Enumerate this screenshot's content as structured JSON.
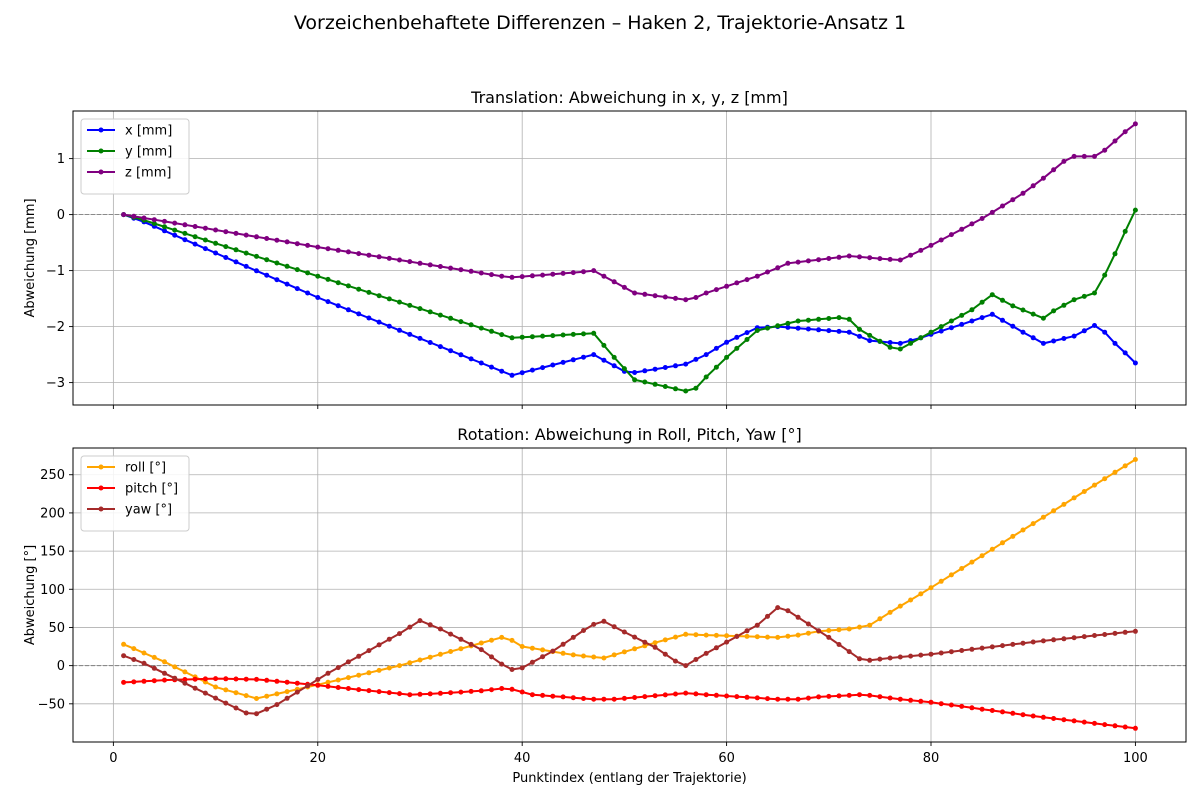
{
  "figure": {
    "suptitle": "Vorzeichenbehaftete Differenzen – Haken 2, Trajektorie-Ansatz 1"
  },
  "chart_data": [
    {
      "type": "line",
      "title": "Translation: Abweichung in x, y, z [mm]",
      "xlabel": "",
      "ylabel": "Abweichung [mm]",
      "xlim": [
        -3.95,
        104.95
      ],
      "ylim": [
        -3.4,
        1.85
      ],
      "xticks": [
        0,
        20,
        40,
        60,
        80,
        100
      ],
      "yticks": [
        -3,
        -2,
        -1,
        0,
        1
      ],
      "show_x_ticklabels": false,
      "grid": true,
      "legend": "upper left",
      "zero_line": true,
      "series": [
        {
          "name": "x [mm]",
          "color": "#0000ff",
          "keypoints": [
            [
              1,
              0
            ],
            [
              3,
              -0.13
            ],
            [
              20,
              -1.48
            ],
            [
              39,
              -2.87
            ],
            [
              47,
              -2.5
            ],
            [
              50,
              -2.8
            ],
            [
              51,
              -2.82
            ],
            [
              53,
              -2.76
            ],
            [
              56,
              -2.67
            ],
            [
              58,
              -2.5
            ],
            [
              60,
              -2.28
            ],
            [
              63,
              -2.02
            ],
            [
              65,
              -2.0
            ],
            [
              72,
              -2.1
            ],
            [
              74,
              -2.25
            ],
            [
              77,
              -2.3
            ],
            [
              79,
              -2.2
            ],
            [
              82,
              -2.02
            ],
            [
              86,
              -1.78
            ],
            [
              89,
              -2.1
            ],
            [
              91,
              -2.3
            ],
            [
              94,
              -2.17
            ],
            [
              96,
              -1.98
            ],
            [
              97,
              -2.1
            ],
            [
              98,
              -2.3
            ],
            [
              99,
              -2.47
            ],
            [
              100,
              -2.65
            ]
          ]
        },
        {
          "name": "y [mm]",
          "color": "#008000",
          "keypoints": [
            [
              1,
              0
            ],
            [
              3,
              -0.1
            ],
            [
              20,
              -1.1
            ],
            [
              39,
              -2.2
            ],
            [
              47,
              -2.12
            ],
            [
              49,
              -2.55
            ],
            [
              51,
              -2.95
            ],
            [
              56,
              -3.15
            ],
            [
              57,
              -3.1
            ],
            [
              58,
              -2.9
            ],
            [
              60,
              -2.55
            ],
            [
              63,
              -2.07
            ],
            [
              67,
              -1.9
            ],
            [
              71,
              -1.84
            ],
            [
              72,
              -1.87
            ],
            [
              73,
              -2.05
            ],
            [
              76,
              -2.37
            ],
            [
              77,
              -2.4
            ],
            [
              80,
              -2.1
            ],
            [
              84,
              -1.7
            ],
            [
              86,
              -1.43
            ],
            [
              88,
              -1.63
            ],
            [
              91,
              -1.85
            ],
            [
              92,
              -1.72
            ],
            [
              94,
              -1.52
            ],
            [
              96,
              -1.4
            ],
            [
              97,
              -1.08
            ],
            [
              98,
              -0.7
            ],
            [
              99,
              -0.3
            ],
            [
              100,
              0.08
            ]
          ]
        },
        {
          "name": "z [mm]",
          "color": "#800080",
          "keypoints": [
            [
              1,
              0
            ],
            [
              3,
              -0.06
            ],
            [
              20,
              -0.58
            ],
            [
              38,
              -1.1
            ],
            [
              39,
              -1.12
            ],
            [
              42,
              -1.08
            ],
            [
              46,
              -1.02
            ],
            [
              47,
              -1.0
            ],
            [
              49,
              -1.2
            ],
            [
              51,
              -1.4
            ],
            [
              56,
              -1.52
            ],
            [
              57,
              -1.48
            ],
            [
              58,
              -1.4
            ],
            [
              60,
              -1.28
            ],
            [
              63,
              -1.1
            ],
            [
              65,
              -0.95
            ],
            [
              66,
              -0.87
            ],
            [
              72,
              -0.74
            ],
            [
              76,
              -0.8
            ],
            [
              77,
              -0.81
            ],
            [
              79,
              -0.64
            ],
            [
              80,
              -0.55
            ],
            [
              85,
              -0.07
            ],
            [
              86,
              0.04
            ],
            [
              89,
              0.38
            ],
            [
              91,
              0.65
            ],
            [
              93,
              0.95
            ],
            [
              94,
              1.04
            ],
            [
              96,
              1.04
            ],
            [
              97,
              1.15
            ],
            [
              99,
              1.48
            ],
            [
              100,
              1.62
            ]
          ]
        }
      ]
    },
    {
      "type": "line",
      "title": "Rotation: Abweichung in Roll, Pitch, Yaw [°]",
      "xlabel": "Punktindex (entlang der Trajektorie)",
      "ylabel": "Abweichung [°]",
      "xlim": [
        -3.95,
        104.95
      ],
      "ylim": [
        -100,
        285
      ],
      "xticks": [
        0,
        20,
        40,
        60,
        80,
        100
      ],
      "yticks": [
        -50,
        0,
        50,
        100,
        150,
        200,
        250
      ],
      "show_x_ticklabels": true,
      "grid": true,
      "legend": "upper left",
      "zero_line": true,
      "series": [
        {
          "name": "roll [°]",
          "color": "#ffa500",
          "keypoints": [
            [
              1,
              28
            ],
            [
              5,
              5
            ],
            [
              10,
              -28
            ],
            [
              14,
              -43
            ],
            [
              20,
              -25
            ],
            [
              28,
              0
            ],
            [
              38,
              37
            ],
            [
              39,
              33
            ],
            [
              40,
              25
            ],
            [
              45,
              14
            ],
            [
              48,
              10
            ],
            [
              50,
              18
            ],
            [
              53,
              30
            ],
            [
              56,
              41
            ],
            [
              58,
              40
            ],
            [
              65,
              37
            ],
            [
              67,
              40
            ],
            [
              69,
              45
            ],
            [
              72,
              48
            ],
            [
              74,
              53
            ],
            [
              77,
              78
            ],
            [
              80,
              102
            ],
            [
              90,
              186
            ],
            [
              100,
              270
            ]
          ]
        },
        {
          "name": "pitch [°]",
          "color": "#ff0000",
          "keypoints": [
            [
              1,
              -22
            ],
            [
              5,
              -19
            ],
            [
              10,
              -17
            ],
            [
              14,
              -18
            ],
            [
              18,
              -23
            ],
            [
              23,
              -30
            ],
            [
              29,
              -38
            ],
            [
              31,
              -37
            ],
            [
              36,
              -33
            ],
            [
              38,
              -30
            ],
            [
              39,
              -31
            ],
            [
              41,
              -38
            ],
            [
              47,
              -44
            ],
            [
              49,
              -44
            ],
            [
              56,
              -36
            ],
            [
              58,
              -38
            ],
            [
              65,
              -44
            ],
            [
              67,
              -44
            ],
            [
              69,
              -41
            ],
            [
              72,
              -39
            ],
            [
              73,
              -38
            ],
            [
              74,
              -39
            ],
            [
              77,
              -44
            ],
            [
              80,
              -48
            ],
            [
              90,
              -66
            ],
            [
              100,
              -82
            ]
          ]
        },
        {
          "name": "yaw [°]",
          "color": "#a52a2a",
          "keypoints": [
            [
              1,
              13
            ],
            [
              3,
              3
            ],
            [
              7,
              -23
            ],
            [
              13,
              -62
            ],
            [
              14,
              -63
            ],
            [
              16,
              -51
            ],
            [
              21,
              -10
            ],
            [
              28,
              42
            ],
            [
              30,
              59
            ],
            [
              32,
              48
            ],
            [
              36,
              21
            ],
            [
              38,
              2
            ],
            [
              39,
              -5
            ],
            [
              40,
              -3
            ],
            [
              43,
              19
            ],
            [
              46,
              46
            ],
            [
              47,
              54
            ],
            [
              48,
              58
            ],
            [
              50,
              44
            ],
            [
              53,
              24
            ],
            [
              55,
              6
            ],
            [
              56,
              0
            ],
            [
              58,
              16
            ],
            [
              63,
              53
            ],
            [
              65,
              76
            ],
            [
              66,
              72
            ],
            [
              70,
              37
            ],
            [
              73,
              9
            ],
            [
              74,
              7
            ],
            [
              76,
              10
            ],
            [
              80,
              15
            ],
            [
              90,
              31
            ],
            [
              100,
              45
            ]
          ]
        }
      ]
    }
  ]
}
